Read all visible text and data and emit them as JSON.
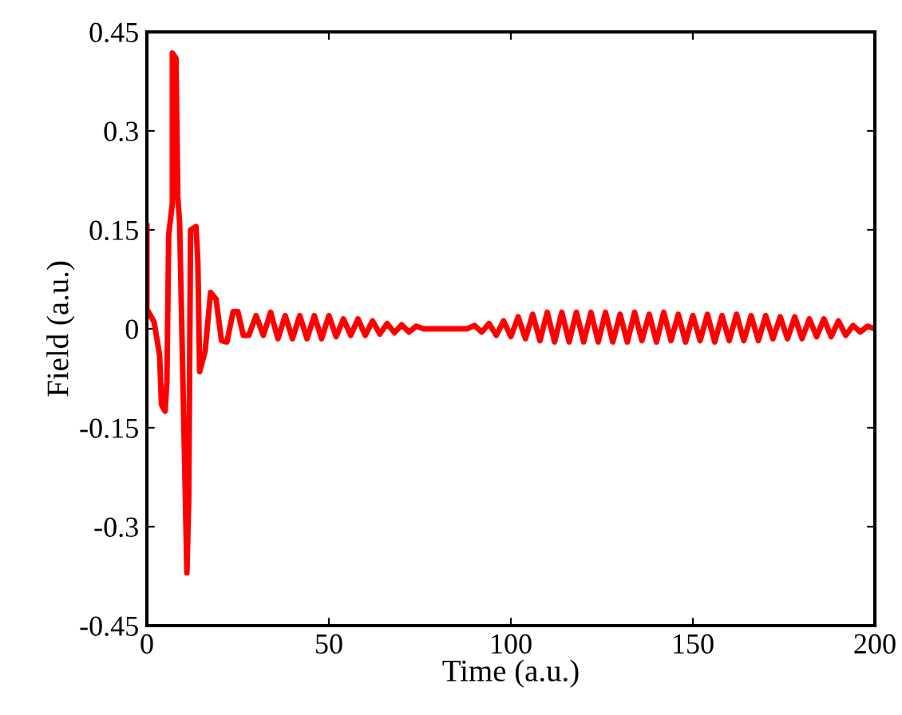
{
  "chart_data": {
    "type": "line",
    "xlabel": "Time (a.u.)",
    "ylabel": "Field (a.u.)",
    "xlim": [
      0,
      200
    ],
    "ylim": [
      -0.45,
      0.45
    ],
    "xticks": [
      0,
      50,
      100,
      150,
      200
    ],
    "yticks": [
      -0.45,
      -0.3,
      -0.15,
      0,
      0.15,
      0.3,
      0.45
    ],
    "grid": false,
    "marker": "none",
    "line_style": "solid",
    "series": [
      {
        "color": "#ff0000",
        "x": [
          0,
          0,
          2,
          3.5,
          4,
          5,
          5.5,
          6,
          7,
          7,
          8,
          8.5,
          9,
          11,
          11.5,
          12,
          13.5,
          14,
          14.5,
          16,
          17.5,
          19,
          20.5,
          22,
          23.7,
          25,
          26.5,
          28,
          30,
          32,
          34,
          36,
          38,
          40,
          42,
          44,
          46,
          48,
          50,
          52,
          54,
          56,
          58,
          60,
          62,
          64,
          66,
          68,
          70,
          72,
          74,
          76,
          78,
          88,
          90,
          92,
          94,
          96,
          98,
          100,
          102,
          104,
          106,
          108,
          110,
          112,
          114,
          116,
          118,
          120,
          122,
          124,
          126,
          128,
          130,
          132,
          134,
          136,
          138,
          140,
          142,
          144,
          146,
          148,
          150,
          152,
          154,
          156,
          158,
          160,
          162,
          164,
          166,
          168,
          170,
          172,
          174,
          176,
          178,
          180,
          182,
          184,
          186,
          188,
          190,
          192,
          194,
          196,
          198,
          200
        ],
        "values": [
          0.156,
          0.03,
          0.01,
          -0.04,
          -0.115,
          -0.125,
          -0.08,
          0.143,
          0.19,
          0.418,
          0.41,
          0.2,
          0.16,
          -0.37,
          -0.26,
          0.15,
          0.155,
          0.103,
          -0.065,
          -0.034,
          0.055,
          0.045,
          -0.018,
          -0.02,
          0.026,
          0.026,
          -0.01,
          -0.01,
          0.02,
          -0.01,
          0.025,
          -0.015,
          0.02,
          -0.015,
          0.02,
          -0.015,
          0.02,
          -0.015,
          0.02,
          -0.012,
          0.015,
          -0.01,
          0.015,
          -0.01,
          0.012,
          -0.008,
          0.008,
          -0.006,
          0.006,
          -0.005,
          0.004,
          0,
          0,
          0,
          0.005,
          -0.005,
          0.008,
          -0.01,
          0.012,
          -0.012,
          0.018,
          -0.015,
          0.022,
          -0.018,
          0.025,
          -0.02,
          0.025,
          -0.02,
          0.025,
          -0.02,
          0.025,
          -0.02,
          0.025,
          -0.02,
          0.022,
          -0.02,
          0.025,
          -0.018,
          0.022,
          -0.02,
          0.025,
          -0.018,
          0.022,
          -0.02,
          0.02,
          -0.018,
          0.022,
          -0.02,
          0.02,
          -0.018,
          0.022,
          -0.018,
          0.02,
          -0.018,
          0.02,
          -0.015,
          0.018,
          -0.015,
          0.018,
          -0.015,
          0.015,
          -0.012,
          0.015,
          -0.012,
          0.012,
          -0.01,
          0.005,
          -0.005,
          0.004,
          0
        ]
      }
    ]
  }
}
